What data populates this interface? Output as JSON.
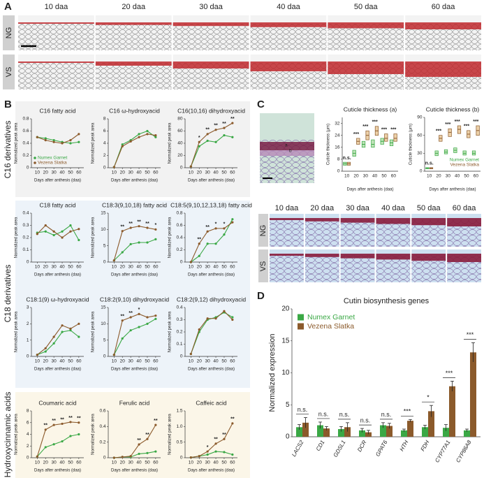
{
  "panel_a": {
    "label": "A",
    "columns": [
      "10 daa",
      "20 daa",
      "30 daa",
      "40 daa",
      "50 daa",
      "60 daa"
    ],
    "rows": [
      "NG",
      "VS"
    ]
  },
  "panel_b": {
    "label": "B",
    "sections": [
      "C16 derivatives",
      "C18 derivatives",
      "Hydroxycinnamic acids"
    ]
  },
  "panel_c": {
    "label": "C",
    "columns": [
      "10 daa",
      "20 daa",
      "30 daa",
      "40 daa",
      "50 daa",
      "60 daa"
    ],
    "rows": [
      "NG",
      "VS"
    ],
    "image_marks": [
      "a",
      "b"
    ]
  },
  "panel_d": {
    "label": "D"
  },
  "chart_data": [
    {
      "type": "line",
      "title": "C16 fatty acid",
      "x": [
        10,
        20,
        30,
        40,
        50,
        60
      ],
      "xlim": [
        3,
        66
      ],
      "xticks": [
        10,
        20,
        30,
        40,
        50,
        60
      ],
      "ylim": [
        0,
        0.8
      ],
      "yticks": [
        0,
        0.2,
        0.4,
        0.6,
        0.8
      ],
      "x_label": "Days after anthesis (daa)",
      "y_label": "Normalized peak area",
      "legend": "lower-left",
      "series": [
        {
          "name": "Numex Garnet",
          "color": "#3aa845",
          "values": [
            0.5,
            0.48,
            0.45,
            0.42,
            0.4,
            0.42
          ]
        },
        {
          "name": "Vezena Slatka",
          "color": "#8b5a2b",
          "values": [
            0.5,
            0.45,
            0.42,
            0.4,
            0.45,
            0.55
          ]
        }
      ],
      "significance": [
        null,
        null,
        null,
        null,
        null,
        null
      ]
    },
    {
      "type": "line",
      "title": "C16 ω-hydroxyacid",
      "x": [
        10,
        20,
        30,
        40,
        50,
        60
      ],
      "xlim": [
        3,
        66
      ],
      "xticks": [
        10,
        20,
        30,
        40,
        50,
        60
      ],
      "ylim": [
        0,
        8
      ],
      "yticks": [
        0,
        2,
        4,
        6,
        8
      ],
      "x_label": "Days after anthesis (daa)",
      "y_label": "Normalized peak area",
      "series": [
        {
          "color": "#3aa845",
          "values": [
            0.1,
            3.8,
            4.5,
            5.5,
            6.0,
            5.0
          ]
        },
        {
          "color": "#8b5a2b",
          "values": [
            0.1,
            3.5,
            4.3,
            5.0,
            5.5,
            5.3
          ]
        }
      ],
      "significance": [
        null,
        null,
        null,
        null,
        null,
        null
      ]
    },
    {
      "type": "line",
      "title": "C16(10,16) dihydroxyacid",
      "x": [
        10,
        20,
        30,
        40,
        50,
        60
      ],
      "xlim": [
        3,
        66
      ],
      "xticks": [
        10,
        20,
        30,
        40,
        50,
        60
      ],
      "ylim": [
        0,
        80
      ],
      "yticks": [
        0,
        20,
        40,
        60,
        80
      ],
      "x_label": "Days after anthesis (daa)",
      "y_label": "Normalized peak area",
      "series": [
        {
          "color": "#3aa845",
          "values": [
            2,
            35,
            44,
            42,
            53,
            50
          ]
        },
        {
          "color": "#8b5a2b",
          "values": [
            2,
            42,
            55,
            62,
            65,
            73
          ]
        }
      ],
      "significance": [
        null,
        "*",
        "**",
        "**",
        "**",
        "**"
      ]
    },
    {
      "type": "line",
      "title": "C18 fatty acid",
      "x": [
        10,
        20,
        30,
        40,
        50,
        60
      ],
      "xlim": [
        3,
        66
      ],
      "xticks": [
        10,
        20,
        30,
        40,
        50,
        60
      ],
      "ylim": [
        0,
        0.4
      ],
      "yticks": [
        0,
        0.1,
        0.2,
        0.3,
        0.4
      ],
      "x_label": "Days after anthesis (daa)",
      "y_label": "Normalized peak area",
      "series": [
        {
          "color": "#3aa845",
          "values": [
            0.24,
            0.25,
            0.22,
            0.25,
            0.3,
            0.18
          ]
        },
        {
          "color": "#8b5a2b",
          "values": [
            0.23,
            0.3,
            0.25,
            0.2,
            0.25,
            0.27
          ]
        }
      ],
      "significance": [
        null,
        null,
        null,
        null,
        null,
        null
      ]
    },
    {
      "type": "line",
      "title": "C18:3(9,10,18) fatty acid",
      "x": [
        10,
        20,
        30,
        40,
        50,
        60
      ],
      "xlim": [
        3,
        66
      ],
      "xticks": [
        10,
        20,
        30,
        40,
        50,
        60
      ],
      "ylim": [
        0,
        15
      ],
      "yticks": [
        0,
        5,
        10,
        15
      ],
      "x_label": "Days after anthesis (daa)",
      "y_label": "Normalized peak area",
      "series": [
        {
          "color": "#3aa845",
          "values": [
            0.5,
            3,
            5.5,
            6,
            6,
            7
          ]
        },
        {
          "color": "#8b5a2b",
          "values": [
            0.5,
            9.5,
            10.5,
            11,
            10.5,
            10
          ]
        }
      ],
      "significance": [
        null,
        "**",
        "**",
        "**",
        "**",
        "*"
      ]
    },
    {
      "type": "line",
      "title": "C18:5(9,10,12,13,18) fatty acid",
      "x": [
        10,
        20,
        30,
        40,
        50,
        60
      ],
      "xlim": [
        3,
        66
      ],
      "xticks": [
        10,
        20,
        30,
        40,
        50,
        60
      ],
      "ylim": [
        0,
        0.8
      ],
      "yticks": [
        0,
        0.2,
        0.4,
        0.6,
        0.8
      ],
      "x_label": "Days after anthesis (daa)",
      "y_label": "Normalized peak area",
      "series": [
        {
          "color": "#3aa845",
          "values": [
            0,
            0.1,
            0.3,
            0.3,
            0.45,
            0.7
          ]
        },
        {
          "color": "#8b5a2b",
          "values": [
            0,
            0.3,
            0.5,
            0.55,
            0.55,
            0.65
          ]
        }
      ],
      "significance": [
        null,
        "**",
        "**",
        "*",
        "*",
        null
      ]
    },
    {
      "type": "line",
      "title": "C18:1(9) ω-hydroxyacid",
      "x": [
        10,
        20,
        30,
        40,
        50,
        60
      ],
      "xlim": [
        3,
        66
      ],
      "xticks": [
        10,
        20,
        30,
        40,
        50,
        60
      ],
      "ylim": [
        0,
        3
      ],
      "yticks": [
        0,
        1,
        2,
        3
      ],
      "x_label": "Days after anthesis (daa)",
      "y_label": "Normalized peak area",
      "series": [
        {
          "color": "#3aa845",
          "values": [
            0.1,
            0.3,
            0.8,
            1.5,
            1.6,
            1.2
          ]
        },
        {
          "color": "#8b5a2b",
          "values": [
            0.1,
            0.5,
            1.2,
            1.9,
            1.7,
            2.0
          ]
        }
      ],
      "significance": [
        null,
        null,
        null,
        null,
        null,
        null
      ]
    },
    {
      "type": "line",
      "title": "C18:2(9,10) dihydroxyacid",
      "x": [
        10,
        20,
        30,
        40,
        50,
        60
      ],
      "xlim": [
        3,
        66
      ],
      "xticks": [
        10,
        20,
        30,
        40,
        50,
        60
      ],
      "ylim": [
        0,
        15
      ],
      "yticks": [
        0,
        5,
        10,
        15
      ],
      "x_label": "Days after anthesis (daa)",
      "y_label": "Normalized peak area",
      "series": [
        {
          "color": "#3aa845",
          "values": [
            0.5,
            5.5,
            8,
            9,
            10,
            11.5
          ]
        },
        {
          "color": "#8b5a2b",
          "values": [
            0.5,
            11,
            12,
            13,
            12,
            12.5
          ]
        }
      ],
      "significance": [
        null,
        "**",
        "**",
        "*",
        null,
        null
      ]
    },
    {
      "type": "line",
      "title": "C18:2(9,12) dihydroxyacid",
      "x": [
        10,
        20,
        30,
        40,
        50,
        60
      ],
      "xlim": [
        3,
        66
      ],
      "xticks": [
        10,
        20,
        30,
        40,
        50,
        60
      ],
      "ylim": [
        0,
        0.4
      ],
      "yticks": [
        0,
        0.1,
        0.2,
        0.3,
        0.4
      ],
      "x_label": "Days after anthesis (daa)",
      "y_label": "Normalized peak area",
      "series": [
        {
          "color": "#3aa845",
          "values": [
            0.02,
            0.2,
            0.3,
            0.32,
            0.36,
            0.32
          ]
        },
        {
          "color": "#8b5a2b",
          "values": [
            0.02,
            0.22,
            0.31,
            0.31,
            0.37,
            0.3
          ]
        }
      ],
      "significance": [
        null,
        null,
        null,
        null,
        null,
        null
      ]
    },
    {
      "type": "line",
      "title": "Coumaric acid",
      "x": [
        10,
        20,
        30,
        40,
        50,
        60
      ],
      "xlim": [
        3,
        66
      ],
      "xticks": [
        10,
        20,
        30,
        40,
        50,
        60
      ],
      "ylim": [
        0,
        8
      ],
      "yticks": [
        0,
        2,
        4,
        6,
        8
      ],
      "x_label": "Days after anthesis (daa)",
      "y_label": "Normalized peak area",
      "series": [
        {
          "color": "#3aa845",
          "values": [
            0.2,
            1.8,
            2.3,
            2.8,
            3.7,
            4.0
          ]
        },
        {
          "color": "#8b5a2b",
          "values": [
            0.2,
            4.8,
            5.6,
            5.8,
            6.1,
            6.0
          ]
        }
      ],
      "significance": [
        null,
        "**",
        "**",
        "**",
        "**",
        "**"
      ]
    },
    {
      "type": "line",
      "title": "Ferulic acid",
      "x": [
        10,
        20,
        30,
        40,
        50,
        60
      ],
      "xlim": [
        3,
        66
      ],
      "xticks": [
        10,
        20,
        30,
        40,
        50,
        60
      ],
      "ylim": [
        0,
        0.6
      ],
      "yticks": [
        0,
        0.2,
        0.4,
        0.6
      ],
      "x_label": "Days after anthesis (daa)",
      "y_label": "Normalized peak area",
      "series": [
        {
          "color": "#3aa845",
          "values": [
            0,
            0.01,
            0.01,
            0.05,
            0.06,
            0.08
          ]
        },
        {
          "color": "#8b5a2b",
          "values": [
            0,
            0.01,
            0.02,
            0.17,
            0.24,
            0.42
          ]
        }
      ],
      "significance": [
        null,
        null,
        null,
        "**",
        "**",
        "**"
      ]
    },
    {
      "type": "line",
      "title": "Caffeic acid",
      "x": [
        10,
        20,
        30,
        40,
        50,
        60
      ],
      "xlim": [
        3,
        66
      ],
      "xticks": [
        10,
        20,
        30,
        40,
        50,
        60
      ],
      "ylim": [
        0,
        1.5
      ],
      "yticks": [
        0,
        0.5,
        {
          "value": 1,
          "label": "1.0"
        },
        1.5
      ],
      "x_label": "Days after anthesis (daa)",
      "y_label": "Normalized peak area",
      "series": [
        {
          "color": "#3aa845",
          "values": [
            0.01,
            0.05,
            0.1,
            0.2,
            0.18,
            0.1
          ]
        },
        {
          "color": "#8b5a2b",
          "values": [
            0.01,
            0.05,
            0.2,
            0.45,
            0.6,
            1.1
          ]
        }
      ],
      "significance": [
        null,
        null,
        "*",
        "**",
        "**",
        "**"
      ]
    },
    {
      "type": "box",
      "title": "Cuticle thickness (a)",
      "categories": [
        "10",
        "20",
        "30",
        "40",
        "50",
        "60"
      ],
      "ylim": [
        0,
        36
      ],
      "yticks": [
        0,
        8,
        16,
        24,
        32
      ],
      "x_label": "Days after anthesis (daa)",
      "y_label": "Cuticle thickness (μm)",
      "series": [
        {
          "color": "#3aa845",
          "fill": "#bfe3b8",
          "q1": [
            4,
            10,
            16,
            16,
            18,
            17
          ],
          "median": [
            5,
            12,
            18,
            18,
            20,
            19
          ],
          "q3": [
            6,
            14,
            20,
            21,
            22,
            21
          ]
        },
        {
          "color": "#8b5a2b",
          "fill": "#ecd0a8",
          "q1": [
            4,
            18,
            21,
            24,
            20,
            20
          ],
          "median": [
            5,
            20,
            24,
            27,
            22,
            22
          ],
          "q3": [
            6,
            22,
            27,
            30,
            25,
            25
          ]
        }
      ],
      "significance": [
        "n.s.",
        "***",
        "***",
        "***",
        "***",
        "***"
      ]
    },
    {
      "type": "box",
      "title": "Cuticle thickness (b)",
      "categories": [
        "10",
        "20",
        "30",
        "40",
        "50",
        "60"
      ],
      "ylim": [
        0,
        90
      ],
      "yticks": [
        0,
        30,
        60,
        90
      ],
      "x_label": "Days after anthesis (daa)",
      "y_label": "Cuticle thickness (μm)",
      "legend": "lower-right",
      "series": [
        {
          "name": "Numex Garnet",
          "color": "#3aa845",
          "fill": "#bfe3b8",
          "q1": [
            4,
            26,
            29,
            31,
            27,
            27
          ],
          "median": [
            5,
            30,
            32,
            35,
            30,
            30
          ],
          "q3": [
            6,
            34,
            36,
            39,
            34,
            34
          ]
        },
        {
          "name": "Vezena Slatka",
          "color": "#8b5a2b",
          "fill": "#ecd0a8",
          "q1": [
            4,
            50,
            58,
            63,
            56,
            60
          ],
          "median": [
            5,
            55,
            65,
            70,
            62,
            68
          ],
          "q3": [
            6,
            60,
            71,
            76,
            68,
            76
          ]
        }
      ],
      "significance": [
        "n.s.",
        "***",
        "***",
        "***",
        "***",
        "***"
      ]
    },
    {
      "type": "bar",
      "title": "Cutin biosynthesis genes",
      "categories": [
        "LACS2",
        "CD1",
        "GDSL1",
        "DCR",
        "GPAT6",
        "HTH",
        "FDH",
        "CYP77A1",
        "CYP86A8"
      ],
      "ylim": [
        0,
        20
      ],
      "yticks": [
        0,
        5,
        10,
        15,
        20
      ],
      "y_label": "Normalized expression",
      "legend": "upper-left",
      "series": [
        {
          "name": "Numex Garnet",
          "color": "#3aa845",
          "values": [
            1.5,
            1.8,
            1.2,
            1.0,
            1.8,
            1.0,
            1.5,
            1.4,
            1.0
          ],
          "errors": [
            0.4,
            0.5,
            0.4,
            0.3,
            0.4,
            0.2,
            0.3,
            0.5,
            0.2
          ]
        },
        {
          "name": "Vezena Slatka",
          "color": "#8b5a2b",
          "values": [
            2.2,
            1.3,
            1.5,
            0.7,
            1.7,
            2.5,
            4.0,
            7.9,
            13.2
          ],
          "errors": [
            0.8,
            0.3,
            0.7,
            0.3,
            0.4,
            0.2,
            0.9,
            0.8,
            1.5
          ]
        }
      ],
      "significance": [
        "n.s.",
        "n.s.",
        "n.s.",
        "n.s.",
        "n.s.",
        "***",
        "*",
        "***",
        "***"
      ]
    }
  ]
}
